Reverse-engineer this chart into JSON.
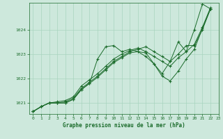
{
  "title": "Graphe pression niveau de la mer (hPa)",
  "bg_color": "#cde8dc",
  "line_color": "#1a6b2a",
  "grid_color": "#a8d4be",
  "xlim": [
    -0.5,
    23
  ],
  "ylim": [
    1020.55,
    1025.1
  ],
  "yticks": [
    1021,
    1022,
    1023,
    1024
  ],
  "xticks": [
    0,
    1,
    2,
    3,
    4,
    5,
    6,
    7,
    8,
    9,
    10,
    11,
    12,
    13,
    14,
    15,
    16,
    17,
    18,
    19,
    20,
    21,
    22,
    23
  ],
  "series": [
    [
      1020.65,
      1020.85,
      1021.0,
      1021.0,
      1021.0,
      1021.15,
      1021.55,
      1021.8,
      1022.8,
      1023.3,
      1023.35,
      1023.1,
      1023.2,
      1023.1,
      1022.9,
      1022.6,
      1022.2,
      1022.7,
      1023.5,
      1023.1,
      1024.0,
      1025.05,
      1024.85
    ],
    [
      1020.65,
      1020.85,
      1021.0,
      1021.0,
      1021.05,
      1021.2,
      1021.6,
      1021.85,
      1022.1,
      1022.4,
      1022.7,
      1022.9,
      1023.1,
      1023.2,
      1023.3,
      1023.1,
      1022.9,
      1022.7,
      1023.0,
      1023.35,
      1023.35,
      1024.0,
      1024.85
    ],
    [
      1020.65,
      1020.85,
      1021.0,
      1021.05,
      1021.1,
      1021.25,
      1021.7,
      1021.95,
      1022.2,
      1022.5,
      1022.8,
      1023.0,
      1023.15,
      1023.25,
      1023.1,
      1022.9,
      1022.7,
      1022.5,
      1022.85,
      1023.1,
      1023.4,
      1024.1,
      1024.9
    ],
    [
      1020.65,
      1020.85,
      1021.0,
      1021.0,
      1021.0,
      1021.15,
      1021.55,
      1021.8,
      1022.05,
      1022.35,
      1022.65,
      1022.85,
      1023.05,
      1023.1,
      1023.05,
      1022.6,
      1022.1,
      1021.9,
      1022.3,
      1022.8,
      1023.2,
      1024.05,
      1024.85
    ]
  ]
}
